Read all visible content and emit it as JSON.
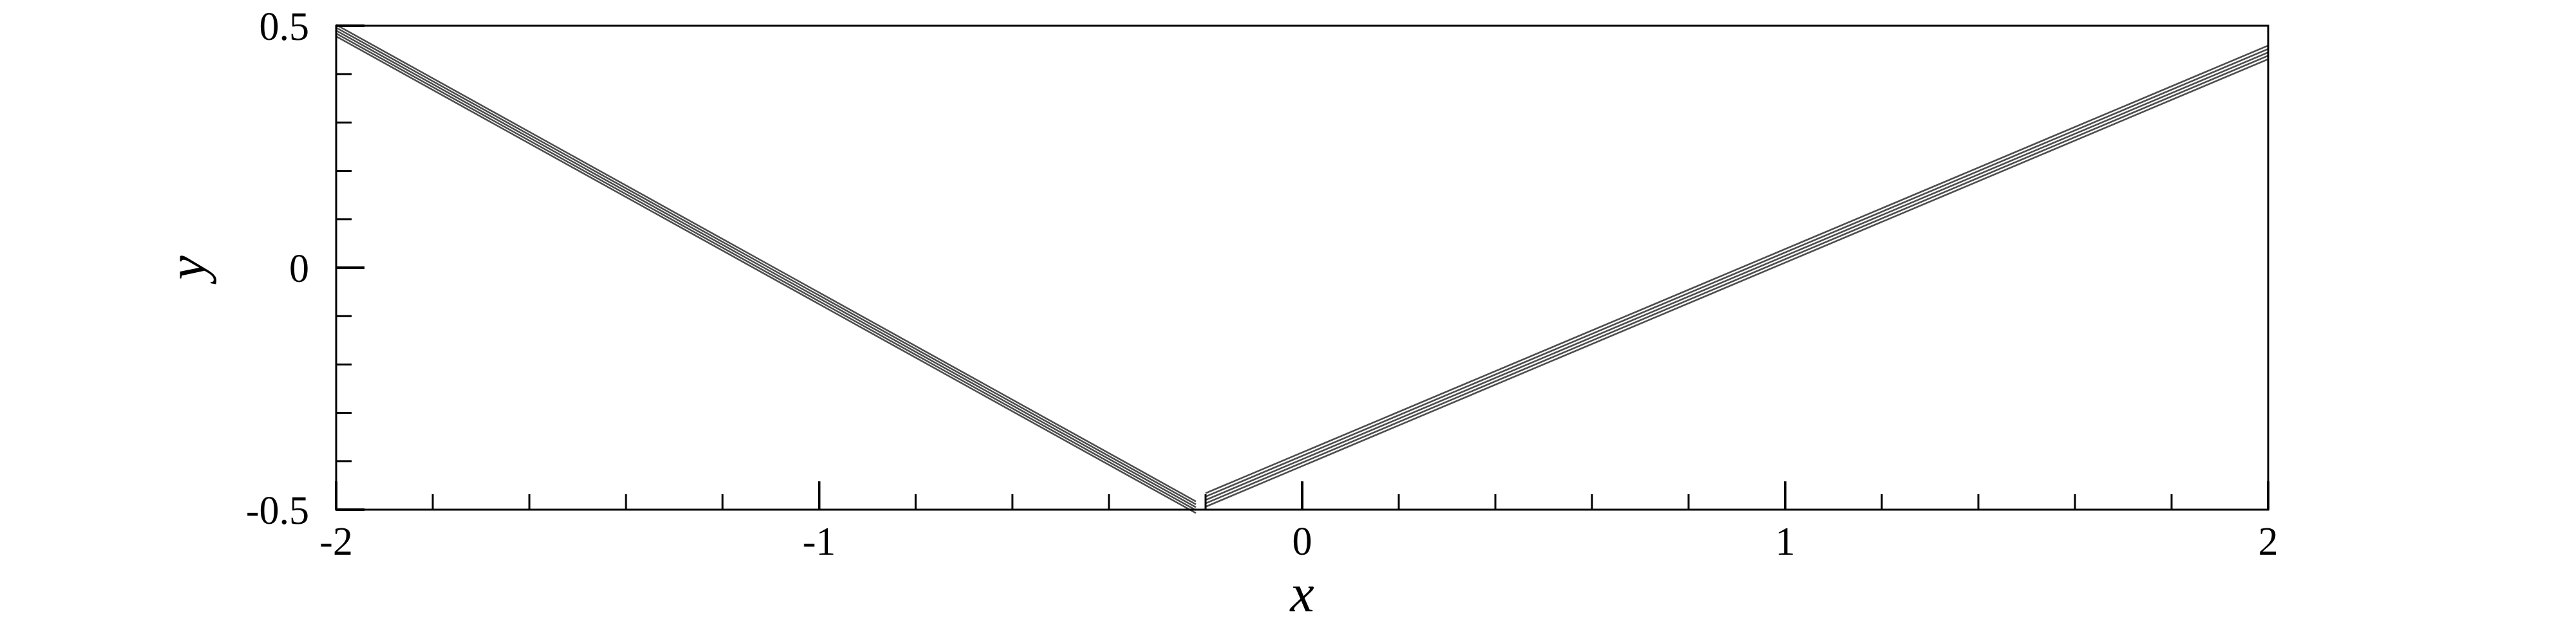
{
  "chart_data": {
    "type": "line",
    "title": "",
    "xlabel": "x",
    "ylabel": "y",
    "xlim": [
      -2,
      2
    ],
    "ylim": [
      -0.5,
      0.5
    ],
    "x_ticks": [
      {
        "value": -2,
        "label": "-2"
      },
      {
        "value": -1,
        "label": "-1"
      },
      {
        "value": 0,
        "label": "0"
      },
      {
        "value": 1,
        "label": "1"
      },
      {
        "value": 2,
        "label": "2"
      }
    ],
    "y_ticks": [
      {
        "value": 0.5,
        "label": "0.5"
      },
      {
        "value": 0,
        "label": "0"
      },
      {
        "value": -0.5,
        "label": "-0.5"
      }
    ],
    "x_minor_step": 0.2,
    "y_minor_step": 0.1,
    "grid": false,
    "line_color": "#4d4d4d",
    "series": [
      {
        "x": [
          -2.0,
          -0.22
        ],
        "y": [
          0.49,
          -0.495
        ],
        "offsets": [
          -0.012,
          -0.006,
          0.0,
          0.006,
          0.012
        ]
      },
      {
        "x": [
          -0.2,
          2.0
        ],
        "y": [
          -0.48,
          0.445
        ],
        "offsets": [
          -0.014,
          -0.007,
          0.0,
          0.007,
          0.014
        ]
      }
    ]
  }
}
